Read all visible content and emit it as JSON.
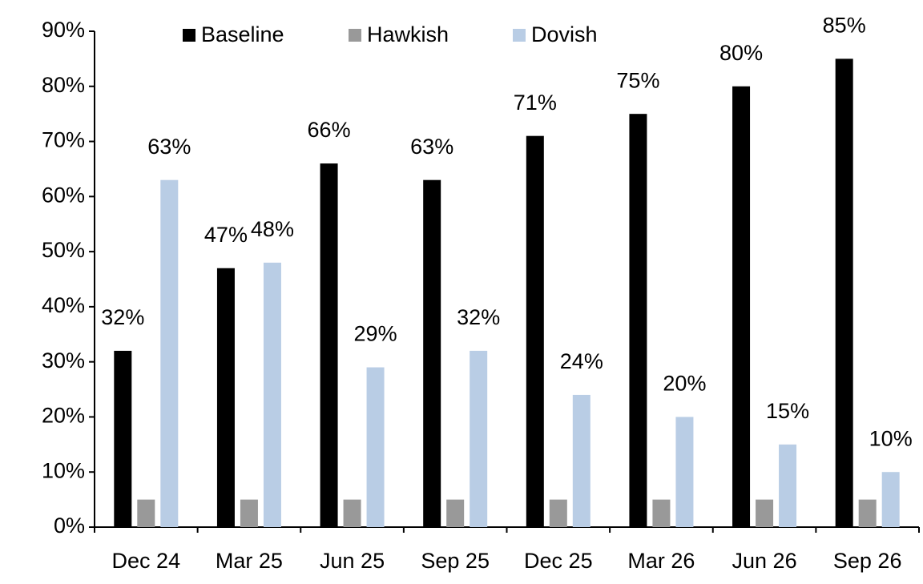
{
  "chart_data": {
    "type": "bar",
    "categories": [
      "Dec 24",
      "Mar 25",
      "Jun 25",
      "Sep 25",
      "Dec 25",
      "Mar 26",
      "Jun 26",
      "Sep 26"
    ],
    "series": [
      {
        "name": "Baseline",
        "color": "#000000",
        "values": [
          32,
          47,
          66,
          63,
          71,
          75,
          80,
          85
        ],
        "value_labels": [
          "32%",
          "47%",
          "66%",
          "63%",
          "71%",
          "75%",
          "80%",
          "85%"
        ]
      },
      {
        "name": "Hawkish",
        "color": "#999999",
        "values": [
          5,
          5,
          5,
          5,
          5,
          5,
          5,
          5
        ]
      },
      {
        "name": "Dovish",
        "color": "#b9cde5",
        "values": [
          63,
          48,
          29,
          32,
          24,
          20,
          15,
          10
        ],
        "value_labels": [
          "63%",
          "48%",
          "29%",
          "32%",
          "24%",
          "20%",
          "15%",
          "10%"
        ]
      }
    ],
    "ylim": [
      0,
      90
    ],
    "yticks": [
      {
        "value": 0,
        "label": "0%"
      },
      {
        "value": 10,
        "label": "10%"
      },
      {
        "value": 20,
        "label": "20%"
      },
      {
        "value": 30,
        "label": "30%"
      },
      {
        "value": 40,
        "label": "40%"
      },
      {
        "value": 50,
        "label": "50%"
      },
      {
        "value": 60,
        "label": "60%"
      },
      {
        "value": 70,
        "label": "70%"
      },
      {
        "value": 80,
        "label": "80%"
      },
      {
        "value": 90,
        "label": "90%"
      }
    ],
    "grid": false,
    "legend": "top"
  }
}
